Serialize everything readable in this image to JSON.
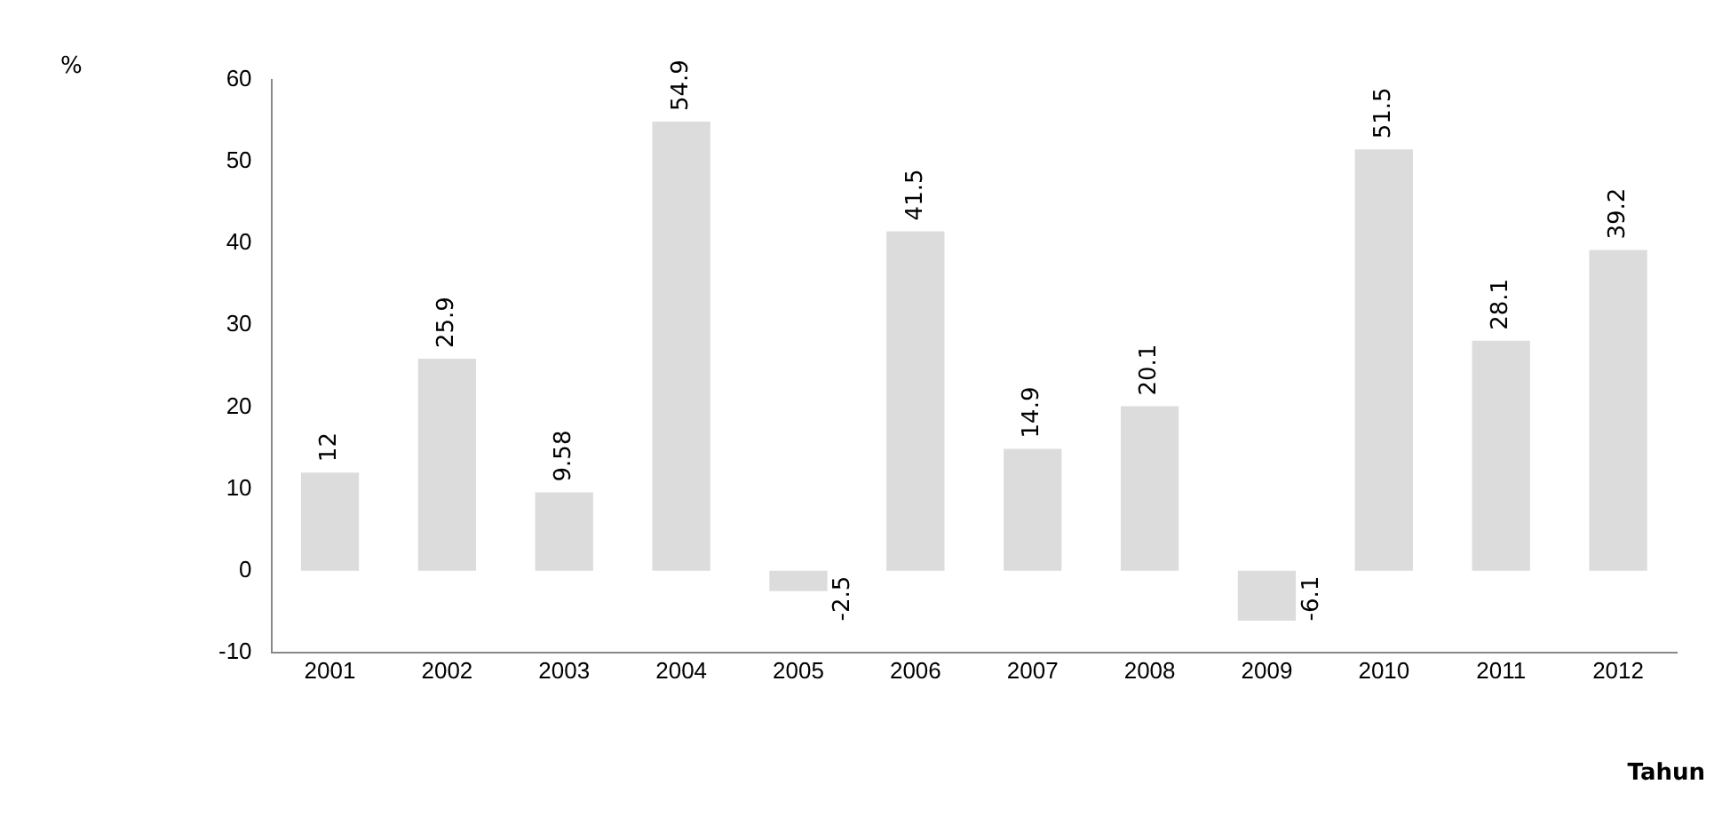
{
  "chart_data": {
    "type": "bar",
    "annotations": [
      "%"
    ],
    "xlabel": "Tahun",
    "categories": [
      "2001",
      "2002",
      "2003",
      "2004",
      "2005",
      "2006",
      "2007",
      "2008",
      "2009",
      "2010",
      "2011",
      "2012"
    ],
    "values": [
      12,
      25.9,
      9.58,
      54.9,
      -2.5,
      41.5,
      14.9,
      20.1,
      -6.1,
      51.5,
      28.1,
      39.2
    ],
    "color": "#dcdcdc",
    "ylim": [
      -10,
      60
    ],
    "yticks": [
      -10,
      0,
      10,
      20,
      30,
      40,
      50,
      60
    ],
    "data_labels": true,
    "grid": false,
    "legend": false
  }
}
